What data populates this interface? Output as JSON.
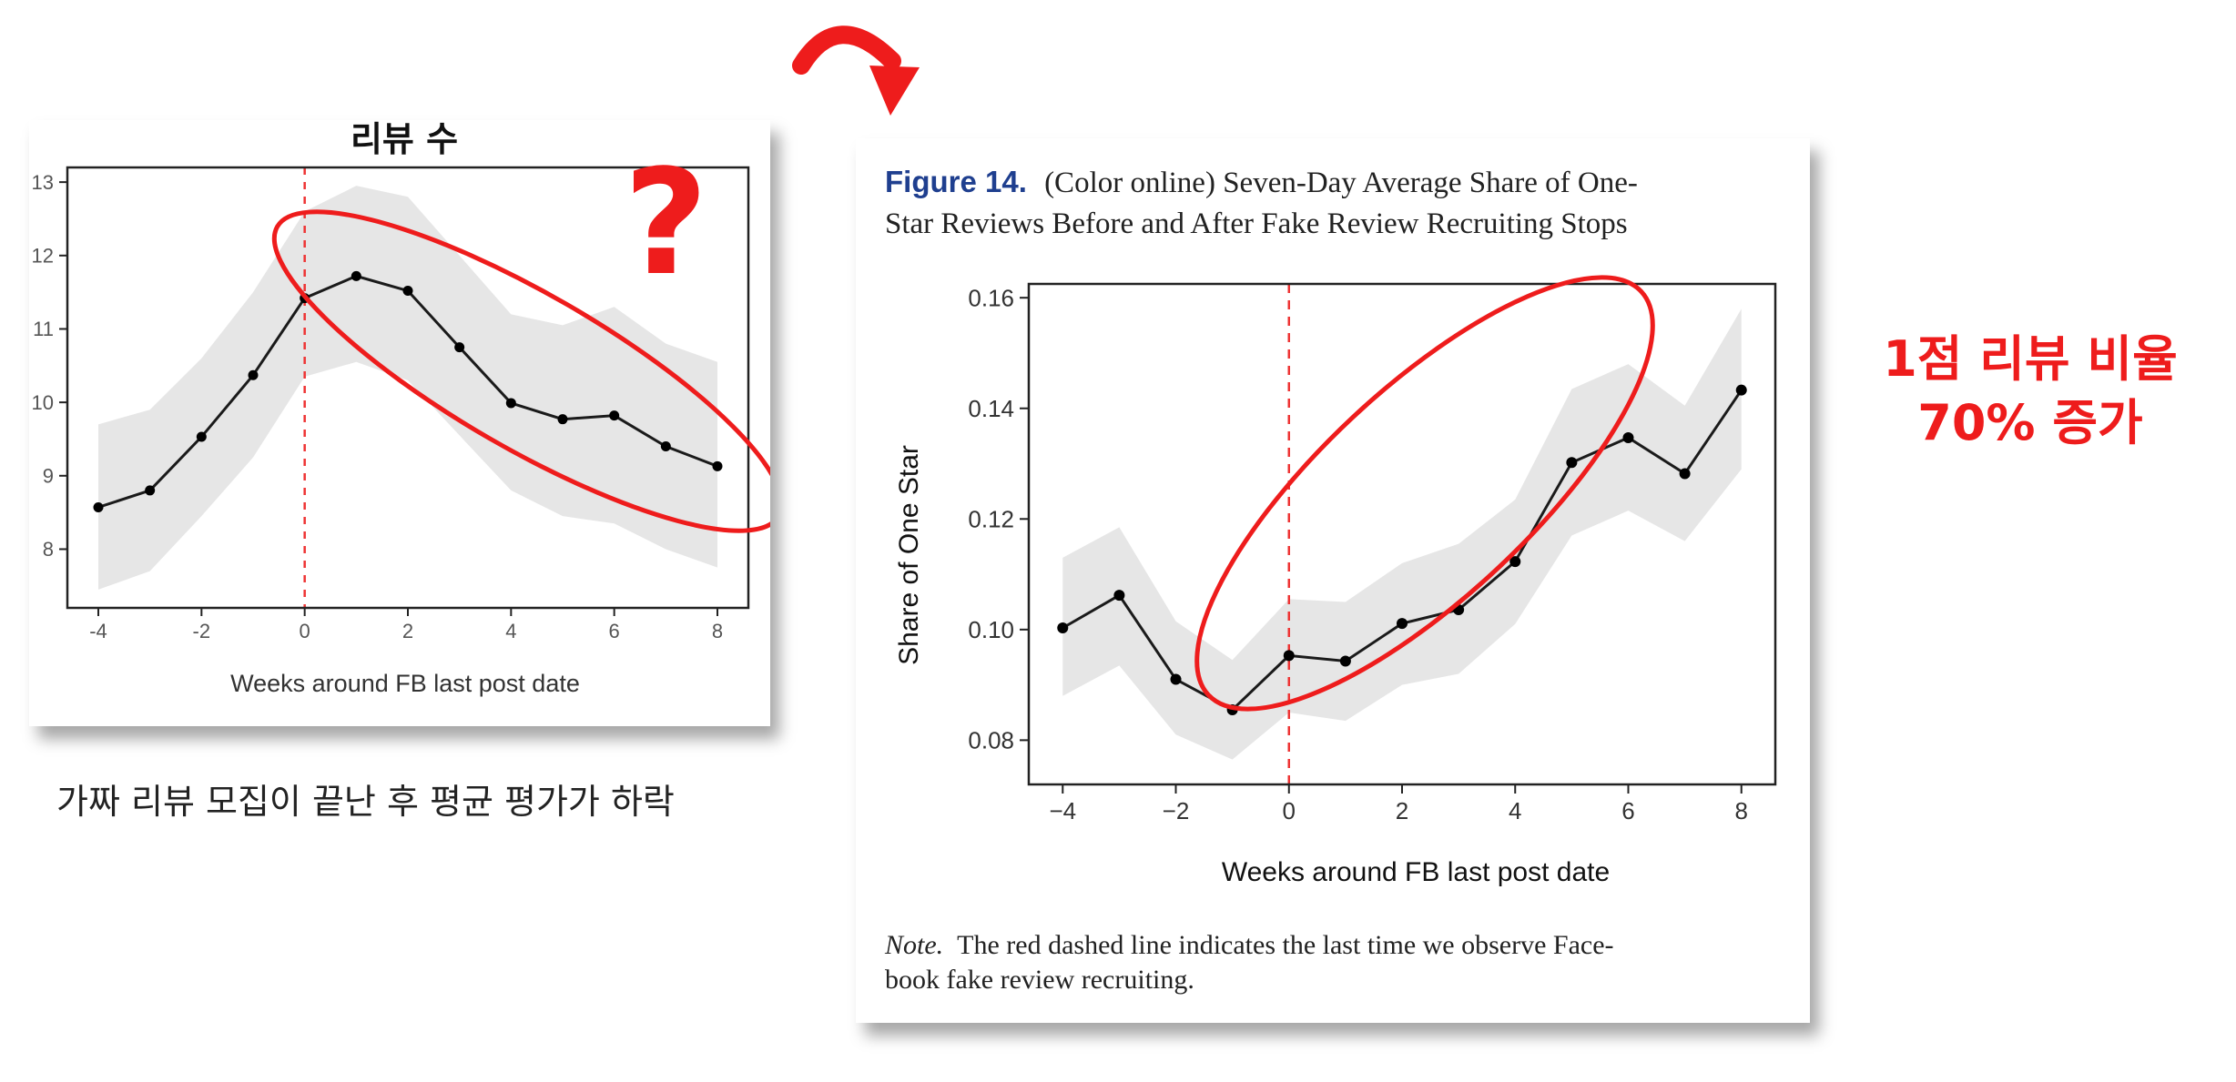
{
  "left": {
    "title": "리뷰 수",
    "caption": "가짜 리뷰 모집이 끝난 후 평균 평가가 하락",
    "question_mark": "?",
    "ellipse_color": "#ee1c1c"
  },
  "right": {
    "figure_label": "Figure 14.",
    "figure_title_line1": "(Color online) Seven-Day Average Share of One-",
    "figure_title_line2": "Star Reviews Before and After Fake Review Recruiting Stops",
    "note_label": "Note.",
    "note_line1_rest": "The red dashed line indicates the last time we observe Face-",
    "note_line2": "book fake review recruiting.",
    "callout_line1": "1점 리뷰 비율",
    "callout_line2": "70% 증가",
    "ellipse_color": "#ee1c1c"
  },
  "colors": {
    "accent_red": "#ee1c1c",
    "figure_blue": "#1f3f8f",
    "band_gray": "#e6e6e6",
    "line": "#1a1a1a"
  },
  "chart_data": [
    {
      "type": "line",
      "title": "리뷰 수",
      "xlabel": "Weeks around FB last post date",
      "ylabel": "",
      "xlim": [
        -4.6,
        8.6
      ],
      "ylim": [
        7.2,
        13.2
      ],
      "xticks": [
        -4,
        -2,
        0,
        2,
        4,
        6,
        8
      ],
      "xtick_labels": [
        "-4",
        "-2",
        "0",
        "2",
        "4",
        "6",
        "8"
      ],
      "yticks": [
        8,
        9,
        10,
        11,
        12,
        13
      ],
      "ytick_labels": [
        "8",
        "9",
        "10",
        "11",
        "12",
        "13"
      ],
      "vline_x": 0,
      "grid": false,
      "x": [
        -4,
        -3,
        -2,
        -1,
        0,
        1,
        2,
        3,
        4,
        5,
        6,
        7,
        8
      ],
      "y": [
        8.57,
        8.8,
        9.53,
        10.37,
        11.42,
        11.72,
        11.52,
        10.75,
        9.99,
        9.77,
        9.82,
        9.4,
        9.13
      ],
      "ci_lower": [
        7.45,
        7.7,
        8.45,
        9.25,
        10.35,
        10.55,
        10.3,
        9.55,
        8.8,
        8.45,
        8.35,
        8.0,
        7.75
      ],
      "ci_upper": [
        9.7,
        9.9,
        10.6,
        11.5,
        12.6,
        12.95,
        12.8,
        12.0,
        11.2,
        11.05,
        11.3,
        10.8,
        10.55
      ]
    },
    {
      "type": "line",
      "title": "",
      "xlabel": "Weeks around FB last post date",
      "ylabel": "Share of One Star",
      "xlim": [
        -4.6,
        8.6
      ],
      "ylim": [
        0.072,
        0.1625
      ],
      "xticks": [
        -4,
        -2,
        0,
        2,
        4,
        6,
        8
      ],
      "xtick_labels": [
        "−4",
        "−2",
        "0",
        "2",
        "4",
        "6",
        "8"
      ],
      "yticks": [
        0.08,
        0.1,
        0.12,
        0.14,
        0.16
      ],
      "ytick_labels": [
        "0.08",
        "0.10",
        "0.12",
        "0.14",
        "0.16"
      ],
      "vline_x": 0,
      "grid": false,
      "x": [
        -4,
        -3,
        -2,
        -1,
        0,
        1,
        2,
        3,
        4,
        5,
        6,
        7,
        8
      ],
      "y": [
        0.1003,
        0.1062,
        0.091,
        0.0855,
        0.0953,
        0.0943,
        0.1011,
        0.1036,
        0.1123,
        0.1302,
        0.1347,
        0.1282,
        0.1433
      ],
      "ci_lower": [
        0.088,
        0.0935,
        0.081,
        0.0765,
        0.085,
        0.0835,
        0.09,
        0.092,
        0.101,
        0.117,
        0.1215,
        0.116,
        0.129
      ],
      "ci_upper": [
        0.113,
        0.1185,
        0.1015,
        0.0945,
        0.1055,
        0.105,
        0.112,
        0.1155,
        0.1235,
        0.1435,
        0.148,
        0.1405,
        0.158
      ]
    }
  ]
}
